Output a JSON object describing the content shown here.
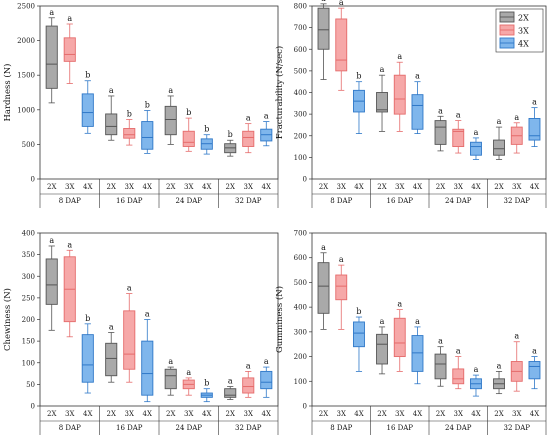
{
  "figure": {
    "series_names": [
      "2X",
      "3X",
      "4X"
    ],
    "colors": {
      "2X": {
        "fill": "#a9a9a9",
        "stroke": "#555555"
      },
      "3X": {
        "fill": "#f6a8a8",
        "stroke": "#e56b6b"
      },
      "4X": {
        "fill": "#7fb6ec",
        "stroke": "#2f78c8"
      }
    },
    "groups": [
      "8 DAP",
      "16 DAP",
      "24 DAP",
      "32 DAP"
    ]
  },
  "chart_data": [
    {
      "type": "box",
      "ylabel": "Hardness (N)",
      "ylim": [
        0,
        2500
      ],
      "yticks": [
        0,
        500,
        1000,
        1500,
        2000,
        2500
      ],
      "groups": [
        "8 DAP",
        "16 DAP",
        "24 DAP",
        "32 DAP"
      ],
      "series": [
        {
          "name": "2X",
          "boxes": [
            [
              1100,
              1310,
              1660,
              2210,
              2330
            ],
            [
              560,
              640,
              760,
              940,
              1200
            ],
            [
              500,
              640,
              860,
              1050,
              1200
            ],
            [
              330,
              380,
              450,
              510,
              560
            ]
          ],
          "letters": [
            "a",
            "a",
            "a",
            "b"
          ]
        },
        {
          "name": "3X",
          "boxes": [
            [
              1380,
              1700,
              1800,
              2040,
              2240
            ],
            [
              490,
              590,
              640,
              730,
              860
            ],
            [
              400,
              470,
              530,
              690,
              880
            ],
            [
              380,
              470,
              600,
              690,
              800
            ]
          ],
          "letters": [
            "a",
            "b",
            "b",
            "a"
          ]
        },
        {
          "name": "4X",
          "boxes": [
            [
              660,
              760,
              960,
              1230,
              1420
            ],
            [
              370,
              430,
              600,
              830,
              990
            ],
            [
              360,
              430,
              510,
              580,
              640
            ],
            [
              480,
              550,
              640,
              720,
              830
            ]
          ],
          "letters": [
            "b",
            "b",
            "b",
            "a"
          ]
        }
      ],
      "legend": false
    },
    {
      "type": "box",
      "ylabel": "Fracturability (N/sec)",
      "ylim": [
        0,
        800
      ],
      "yticks": [
        0,
        100,
        200,
        300,
        400,
        500,
        600,
        700,
        800
      ],
      "groups": [
        "8 DAP",
        "16 DAP",
        "24 DAP",
        "32 DAP"
      ],
      "series": [
        {
          "name": "2X",
          "boxes": [
            [
              460,
              600,
              690,
              790,
              810
            ],
            [
              220,
              310,
              320,
              400,
              480
            ],
            [
              130,
              160,
              240,
              270,
              290
            ],
            [
              90,
              110,
              140,
              180,
              240
            ]
          ],
          "letters": [
            "a",
            "a",
            "a",
            "a"
          ]
        },
        {
          "name": "3X",
          "boxes": [
            [
              410,
              500,
              550,
              740,
              790
            ],
            [
              220,
              300,
              370,
              480,
              540
            ],
            [
              120,
              150,
              220,
              230,
              270
            ],
            [
              120,
              160,
              200,
              240,
              260
            ]
          ],
          "letters": [
            "a",
            "a",
            "a",
            "a"
          ]
        },
        {
          "name": "4X",
          "boxes": [
            [
              210,
              310,
              360,
              410,
              450
            ],
            [
              210,
              230,
              340,
              390,
              450
            ],
            [
              90,
              110,
              150,
              170,
              190
            ],
            [
              150,
              180,
              200,
              280,
              330
            ]
          ],
          "letters": [
            "b",
            "a",
            "a",
            "a"
          ]
        }
      ],
      "legend": true,
      "legend_position": "top-right"
    },
    {
      "type": "box",
      "ylabel": "Chewiness (N)",
      "ylim": [
        0,
        400
      ],
      "yticks": [
        0,
        50,
        100,
        150,
        200,
        250,
        300,
        350,
        400
      ],
      "groups": [
        "8 DAP",
        "16 DAP",
        "24 DAP",
        "32 DAP"
      ],
      "series": [
        {
          "name": "2X",
          "boxes": [
            [
              175,
              235,
              280,
              340,
              370
            ],
            [
              55,
              70,
              110,
              145,
              170
            ],
            [
              25,
              40,
              70,
              85,
              90
            ],
            [
              15,
              20,
              25,
              40,
              45
            ]
          ],
          "letters": [
            "a",
            "a",
            "a",
            "a"
          ]
        },
        {
          "name": "3X",
          "boxes": [
            [
              160,
              195,
              270,
              345,
              360
            ],
            [
              55,
              85,
              120,
              220,
              260
            ],
            [
              25,
              40,
              50,
              60,
              65
            ],
            [
              20,
              30,
              45,
              65,
              80
            ]
          ],
          "letters": [
            "a",
            "a",
            "a",
            "a"
          ]
        },
        {
          "name": "4X",
          "boxes": [
            [
              30,
              55,
              95,
              165,
              190
            ],
            [
              10,
              25,
              75,
              150,
              200
            ],
            [
              10,
              20,
              25,
              30,
              40
            ],
            [
              20,
              40,
              55,
              80,
              90
            ]
          ],
          "letters": [
            "b",
            "a",
            "b",
            "a"
          ]
        }
      ],
      "legend": false
    },
    {
      "type": "box",
      "ylabel": "Gumminess (N)",
      "ylim": [
        0,
        700
      ],
      "yticks": [
        0,
        100,
        200,
        300,
        400,
        500,
        600,
        700
      ],
      "groups": [
        "8 DAP",
        "16 DAP",
        "24 DAP",
        "32 DAP"
      ],
      "series": [
        {
          "name": "2X",
          "boxes": [
            [
              310,
              375,
              485,
              580,
              620
            ],
            [
              130,
              170,
              250,
              290,
              320
            ],
            [
              80,
              110,
              170,
              210,
              240
            ],
            [
              50,
              70,
              90,
              110,
              140
            ]
          ],
          "letters": [
            "a",
            "a",
            "a",
            "a"
          ]
        },
        {
          "name": "3X",
          "boxes": [
            [
              310,
              430,
              485,
              530,
              570
            ],
            [
              140,
              200,
              255,
              355,
              390
            ],
            [
              70,
              90,
              110,
              150,
              200
            ],
            [
              60,
              100,
              140,
              180,
              260
            ]
          ],
          "letters": [
            "a",
            "a",
            "a",
            "a"
          ]
        },
        {
          "name": "4X",
          "boxes": [
            [
              140,
              240,
              295,
              340,
              360
            ],
            [
              90,
              140,
              215,
              285,
              320
            ],
            [
              40,
              70,
              90,
              110,
              125
            ],
            [
              70,
              110,
              160,
              180,
              200
            ]
          ],
          "letters": [
            "b",
            "a",
            "a",
            "a"
          ]
        }
      ],
      "legend": false
    }
  ]
}
